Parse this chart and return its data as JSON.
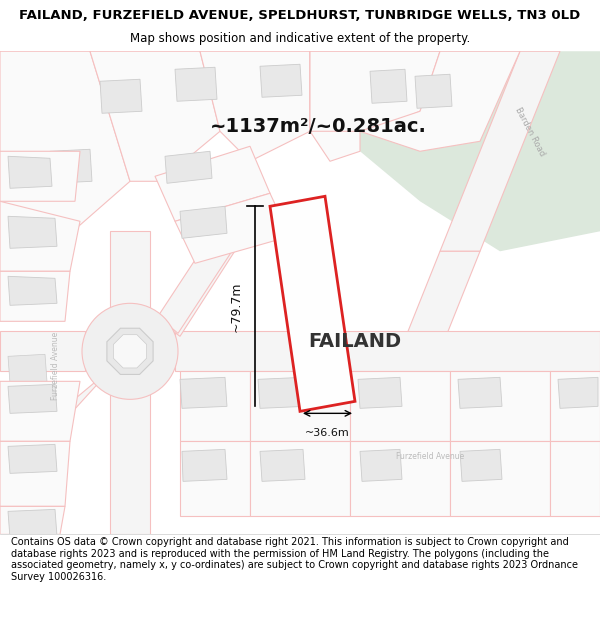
{
  "title_line1": "FAILAND, FURZEFIELD AVENUE, SPELDHURST, TUNBRIDGE WELLS, TN3 0LD",
  "title_line2": "Map shows position and indicative extent of the property.",
  "area_text": "~1137m²/~0.281ac.",
  "label": "FAILAND",
  "dim_width": "~36.6m",
  "dim_height": "~79.7m",
  "footer": "Contains OS data © Crown copyright and database right 2021. This information is subject to Crown copyright and database rights 2023 and is reproduced with the permission of HM Land Registry. The polygons (including the associated geometry, namely x, y co-ordinates) are subject to Crown copyright and database rights 2023 Ordnance Survey 100026316.",
  "bg_map_color": "#ffffff",
  "road_color": "#f5c0c0",
  "plot_edge_color": "#dd2222",
  "title_bg": "#ffffff",
  "footer_bg": "#ffffff",
  "map_bg": "#ffffff",
  "green_area": "#dce8dc",
  "building_fill": "#e8e8e8",
  "building_edge": "#cccccc",
  "plot_outline_light": "#f5c0c0",
  "road_area_fill": "#f0f0f0"
}
